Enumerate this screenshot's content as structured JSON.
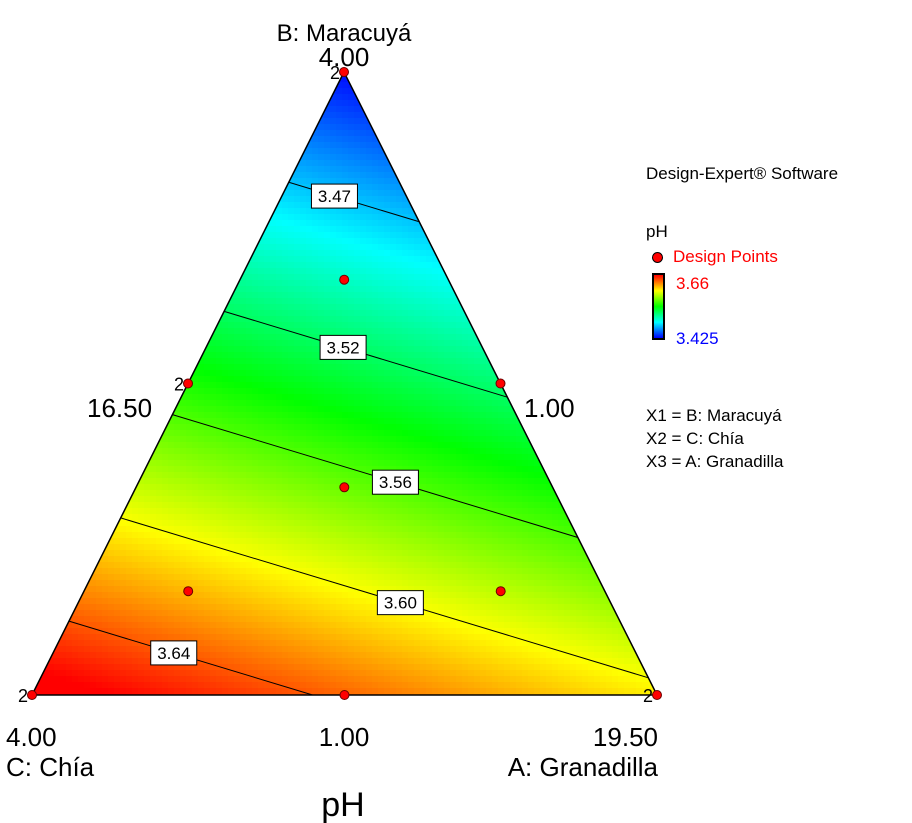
{
  "chart_data": {
    "type": "ternary-contour",
    "title": "pH",
    "response": "pH",
    "software": "Design-Expert® Software",
    "vertices": {
      "top": {
        "component": "B: Maracuyá",
        "label": "4.00"
      },
      "bottom_left": {
        "component": "C: Chía",
        "label": "4.00"
      },
      "bottom_right": {
        "component": "A: Granadilla",
        "label": "19.50"
      }
    },
    "edge_labels": {
      "left": "16.50",
      "right": "1.00",
      "bottom": "1.00"
    },
    "color_scale": {
      "high": "3.66",
      "low": "3.425",
      "high_value": 3.66,
      "low_value": 3.425
    },
    "contours": [
      {
        "value": 3.47,
        "label": "3.47"
      },
      {
        "value": 3.52,
        "label": "3.52"
      },
      {
        "value": 3.56,
        "label": "3.56"
      },
      {
        "value": 3.6,
        "label": "3.60"
      },
      {
        "value": 3.64,
        "label": "3.64"
      }
    ],
    "design_points": [
      {
        "a": 0,
        "b": 1,
        "c": 0,
        "replicates": "2"
      },
      {
        "a": 1,
        "b": 0,
        "c": 0,
        "replicates": "2"
      },
      {
        "a": 0,
        "b": 0,
        "c": 1,
        "replicates": "2"
      },
      {
        "a": 0,
        "b": 0.5,
        "c": 0.5,
        "replicates": "2"
      },
      {
        "a": 0.5,
        "b": 0.5,
        "c": 0,
        "replicates": ""
      },
      {
        "a": 0.5,
        "b": 0,
        "c": 0.5,
        "replicates": ""
      },
      {
        "a": 0.1667,
        "b": 0.6667,
        "c": 0.1667,
        "replicates": ""
      },
      {
        "a": 0.3333,
        "b": 0.3333,
        "c": 0.3333,
        "replicates": ""
      },
      {
        "a": 0.1667,
        "b": 0.1667,
        "c": 0.6667,
        "replicates": ""
      },
      {
        "a": 0.6667,
        "b": 0.1667,
        "c": 0.1667,
        "replicates": ""
      }
    ]
  },
  "legend": {
    "software": "Design-Expert® Software",
    "response_name": "pH",
    "design_points_label": "Design Points",
    "high_label": "3.66",
    "low_label": "3.425",
    "components": [
      "X1 = B: Maracuyá",
      "X2 = C: Chía",
      "X3 = A: Granadilla"
    ]
  },
  "colors": {
    "design_point": "#ff0000",
    "high_text": "#ff0000",
    "low_text": "#0000ff"
  }
}
